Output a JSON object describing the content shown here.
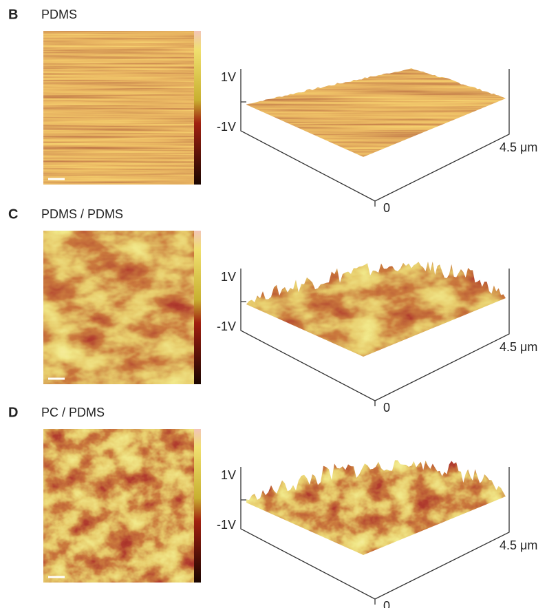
{
  "panels": [
    {
      "label": "B",
      "title": "PDMS",
      "z_max": "1V",
      "z_min": "-1V",
      "axis_end": "4.5 μm",
      "axis_start": "0"
    },
    {
      "label": "C",
      "title": "PDMS / PDMS",
      "z_max": "1V",
      "z_min": "-1V",
      "axis_end": "4.5 μm",
      "axis_start": "0"
    },
    {
      "label": "D",
      "title": "PC / PDMS",
      "z_max": "1V",
      "z_min": "-1V",
      "axis_end": "4.5 μm",
      "axis_start": "0"
    }
  ]
}
